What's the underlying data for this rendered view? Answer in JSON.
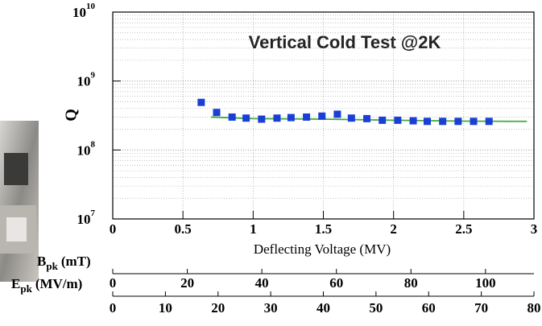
{
  "chart_data": {
    "type": "scatter",
    "title": "Vertical Cold Test @2K",
    "xlabel": "Deflecting Voltage (MV)",
    "ylabel": "Q",
    "yscale": "log",
    "xlim": [
      0,
      3
    ],
    "xticks": [
      0,
      0.5,
      1,
      1.5,
      2,
      2.5,
      3
    ],
    "ylim": [
      10000000,
      10000000000
    ],
    "yticks": [
      {
        "value": 10000000,
        "label": "10",
        "exponent": "7"
      },
      {
        "value": 100000000,
        "label": "10",
        "exponent": "8"
      },
      {
        "value": 1000000000,
        "label": "10",
        "exponent": "9"
      },
      {
        "value": 10000000000,
        "label": "10",
        "exponent": "10"
      }
    ],
    "grid": true,
    "series": [
      {
        "type": "scatter",
        "color": "#1b3fd6",
        "x": [
          0.63,
          0.74,
          0.85,
          0.95,
          1.06,
          1.17,
          1.27,
          1.38,
          1.49,
          1.6,
          1.7,
          1.81,
          1.92,
          2.03,
          2.14,
          2.24,
          2.35,
          2.46,
          2.57,
          2.68
        ],
        "values": [
          490000000,
          350000000,
          300000000,
          290000000,
          280000000,
          290000000,
          295000000,
          300000000,
          310000000,
          330000000,
          290000000,
          285000000,
          270000000,
          270000000,
          265000000,
          260000000,
          260000000,
          260000000,
          260000000,
          260000000
        ]
      },
      {
        "type": "line",
        "color": "#3daa3d",
        "x": [
          0.7,
          1.0,
          1.5,
          2.0,
          2.5,
          2.95
        ],
        "values": [
          300000000,
          285000000,
          280000000,
          270000000,
          262000000,
          260000000
        ]
      }
    ],
    "secondary_axes": [
      {
        "label": {
          "main": "B",
          "sub": "pk",
          "unit": "(mT)"
        },
        "xlim": [
          0,
          113
        ],
        "xticks": [
          0,
          20,
          40,
          60,
          80,
          100
        ]
      },
      {
        "label": {
          "main": "E",
          "sub": "pk",
          "unit": "(MV/m)"
        },
        "xlim": [
          0,
          80
        ],
        "xticks": [
          0,
          10,
          20,
          30,
          40,
          50,
          60,
          70,
          80
        ]
      }
    ]
  }
}
